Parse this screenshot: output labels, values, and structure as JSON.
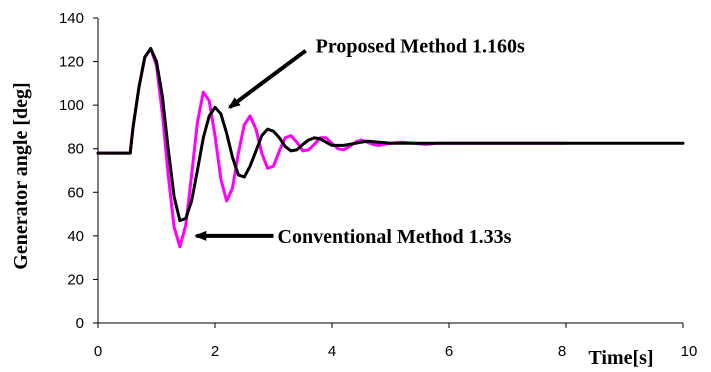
{
  "chart_data": {
    "type": "line",
    "title": "",
    "xlabel": "Time[s]",
    "ylabel": "Generator angle [deg]",
    "xlim": [
      0,
      10
    ],
    "ylim": [
      0,
      140
    ],
    "x_ticks": [
      0,
      2,
      4,
      6,
      8,
      10
    ],
    "y_ticks": [
      0,
      20,
      40,
      60,
      80,
      100,
      120,
      140
    ],
    "grid": false,
    "legend": "none",
    "series": [
      {
        "color": "#ff00ff",
        "x": [
          0,
          0.55,
          0.6,
          0.7,
          0.8,
          0.9,
          1.0,
          1.1,
          1.2,
          1.3,
          1.4,
          1.5,
          1.6,
          1.7,
          1.8,
          1.9,
          2.0,
          2.1,
          2.2,
          2.3,
          2.4,
          2.5,
          2.6,
          2.7,
          2.8,
          2.9,
          3.0,
          3.1,
          3.2,
          3.3,
          3.4,
          3.5,
          3.6,
          3.7,
          3.8,
          3.9,
          4.0,
          4.1,
          4.2,
          4.3,
          4.4,
          4.5,
          4.6,
          4.7,
          4.8,
          5.0,
          5.2,
          5.4,
          5.6,
          5.8,
          6.0,
          6.5,
          7.0,
          7.5,
          8.0
        ],
        "y": [
          78,
          78,
          90,
          108,
          122,
          126,
          118,
          96,
          68,
          44,
          35,
          45,
          68,
          92,
          106,
          102,
          86,
          66,
          56,
          62,
          78,
          91,
          95,
          89,
          78,
          71,
          72,
          79,
          85,
          86,
          83,
          79,
          79.5,
          82,
          85,
          85,
          82.5,
          80,
          79.5,
          81,
          83,
          84,
          83,
          82,
          81.5,
          82.5,
          83,
          82.5,
          82,
          82.5,
          82.5,
          82.5,
          82.5,
          82.5,
          82.5
        ]
      },
      {
        "color": "#000000",
        "x": [
          0,
          0.55,
          0.6,
          0.7,
          0.8,
          0.9,
          1.0,
          1.1,
          1.2,
          1.3,
          1.4,
          1.5,
          1.6,
          1.7,
          1.8,
          1.9,
          2.0,
          2.1,
          2.2,
          2.3,
          2.4,
          2.5,
          2.6,
          2.7,
          2.8,
          2.9,
          3.0,
          3.1,
          3.2,
          3.3,
          3.4,
          3.5,
          3.6,
          3.7,
          3.8,
          3.9,
          4.0,
          4.2,
          4.4,
          4.6,
          4.8,
          5.0,
          5.5,
          6.0,
          7.0,
          8.0,
          9.0,
          10.0
        ],
        "y": [
          78,
          78,
          90,
          108,
          122,
          126,
          120,
          104,
          80,
          58,
          47,
          48,
          56,
          70,
          85,
          95,
          99,
          96,
          87,
          76,
          68,
          67,
          72,
          79,
          86,
          89,
          88,
          85,
          81,
          79,
          79.5,
          82,
          84,
          85,
          84.5,
          83,
          81.5,
          81.5,
          82.5,
          83.5,
          83,
          82.5,
          82.5,
          82.5,
          82.5,
          82.5,
          82.5,
          82.5
        ]
      }
    ],
    "annotations": [
      {
        "text": "Proposed Method 1.160s",
        "arrow_tip": [
          2.25,
          99
        ],
        "arrow_tail": [
          3.55,
          125
        ]
      },
      {
        "text": "Conventional Method 1.33s",
        "arrow_tip": [
          1.68,
          40
        ],
        "arrow_tail": [
          3.0,
          40
        ]
      }
    ]
  }
}
